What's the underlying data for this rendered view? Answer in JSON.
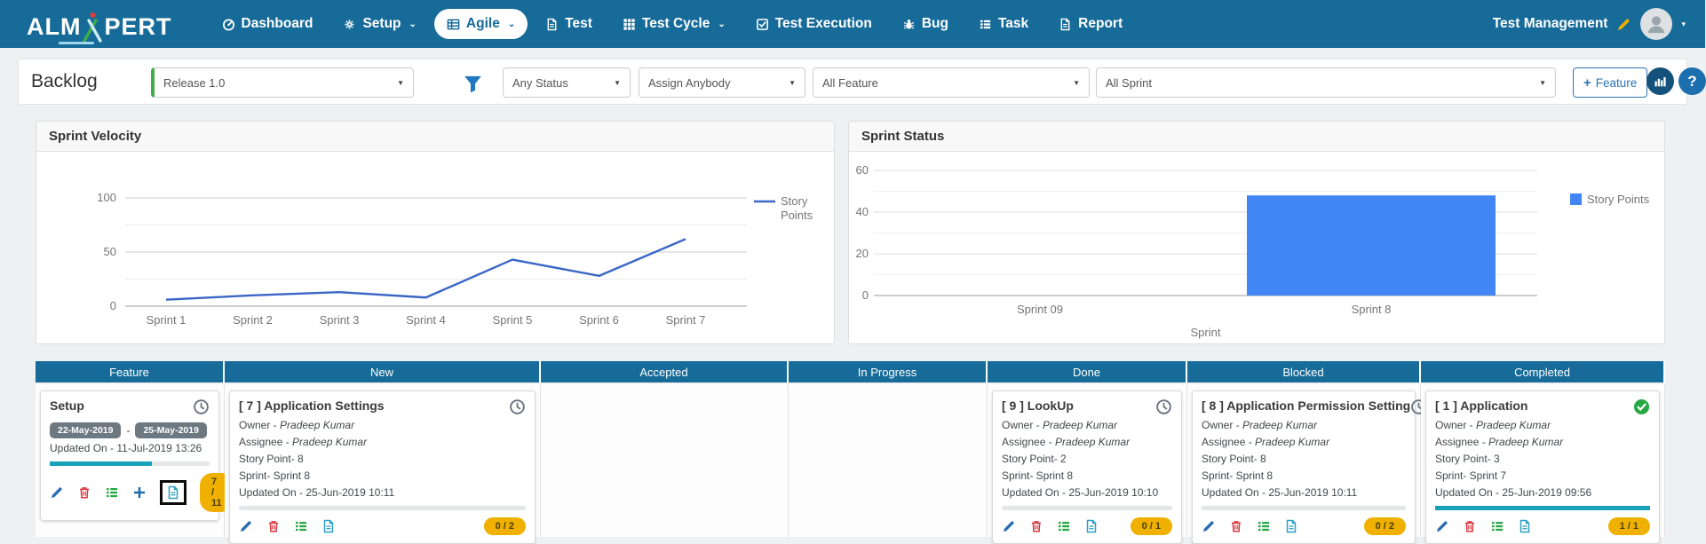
{
  "nav": {
    "brand": {
      "part1": "ALM",
      "x_letter": "X",
      "part2": "PERT"
    },
    "items": [
      {
        "id": "dashboard",
        "label": "Dashboard",
        "icon": "dashboard",
        "caret": false,
        "active": false
      },
      {
        "id": "setup",
        "label": "Setup",
        "icon": "gears",
        "caret": true,
        "active": false
      },
      {
        "id": "agile",
        "label": "Agile",
        "icon": "table",
        "caret": true,
        "active": true
      },
      {
        "id": "test",
        "label": "Test",
        "icon": "file",
        "caret": false,
        "active": false
      },
      {
        "id": "test-cycle",
        "label": "Test Cycle",
        "icon": "grid",
        "caret": true,
        "active": false
      },
      {
        "id": "test-execution",
        "label": "Test Execution",
        "icon": "check-square",
        "caret": false,
        "active": false
      },
      {
        "id": "bug",
        "label": "Bug",
        "icon": "bug",
        "caret": false,
        "active": false
      },
      {
        "id": "task",
        "label": "Task",
        "icon": "tasks",
        "caret": false,
        "active": false
      },
      {
        "id": "report",
        "label": "Report",
        "icon": "file",
        "caret": false,
        "active": false
      }
    ],
    "project_name": "Test Management"
  },
  "toolbar": {
    "page_title": "Backlog",
    "release_filter": "Release 1.0",
    "status_filter": "Any Status",
    "assignee_filter": "Assign Anybody",
    "feature_filter": "All Feature",
    "sprint_filter": "All Sprint",
    "add_feature_plus": "+",
    "add_feature_label": "Feature",
    "help_label": "?"
  },
  "chart_data": [
    {
      "type": "line",
      "title": "Sprint Velocity",
      "categories": [
        "Sprint 1",
        "Sprint 2",
        "Sprint 3",
        "Sprint 4",
        "Sprint 5",
        "Sprint 6",
        "Sprint 7"
      ],
      "series": [
        {
          "name": "Story Points",
          "values": [
            6,
            10,
            13,
            8,
            43,
            28,
            62
          ]
        }
      ],
      "xlabel": "",
      "ylabel": "",
      "yticks": [
        0,
        50,
        100
      ],
      "yticks_minor": [
        25,
        75
      ],
      "ylim": [
        0,
        115
      ],
      "grid": true,
      "legend_position": "right",
      "line_color": "#3a66c6"
    },
    {
      "type": "bar",
      "title": "Sprint Status",
      "categories": [
        "Sprint 09",
        "Sprint 8"
      ],
      "series": [
        {
          "name": "Story Points",
          "values": [
            0,
            48
          ]
        }
      ],
      "xlabel": "Sprint",
      "ylabel": "",
      "yticks": [
        0,
        20,
        40,
        60
      ],
      "yticks_minor": [
        10,
        30,
        50
      ],
      "ylim": [
        0,
        64
      ],
      "grid": true,
      "legend_position": "right",
      "bar_color": "#4285f4"
    }
  ],
  "board": {
    "columns": [
      {
        "label": "Feature",
        "cards": [
          {
            "title": "Setup",
            "corner_icon": "clock",
            "date_badges": {
              "start": "22-May-2019",
              "separator": "-",
              "end": "25-May-2019"
            },
            "lines": [
              {
                "label": "Updated On - 11-Jul-2019 13:26"
              }
            ],
            "progress": 64,
            "actions": [
              "edit",
              "delete",
              "list",
              "add",
              "file-highlight"
            ],
            "badge": "7 / 11"
          }
        ]
      },
      {
        "label": "New",
        "cards": [
          {
            "title": "[ 7 ] Application Settings",
            "corner_icon": "clock",
            "lines": [
              {
                "label": "Owner - ",
                "value": "Pradeep Kumar"
              },
              {
                "label": "Assignee - ",
                "value": "Pradeep Kumar"
              },
              {
                "label": "Story Point- 8"
              },
              {
                "label": "Sprint- Sprint 8"
              },
              {
                "label": "Updated On - 25-Jun-2019 10:11"
              }
            ],
            "progress": 0,
            "actions": [
              "edit",
              "delete",
              "list",
              "file"
            ],
            "badge": "0 / 2"
          }
        ]
      },
      {
        "label": "Accepted",
        "cards": []
      },
      {
        "label": "In Progress",
        "cards": []
      },
      {
        "label": "Done",
        "cards": [
          {
            "title": "[ 9 ] LookUp",
            "corner_icon": "clock",
            "lines": [
              {
                "label": "Owner - ",
                "value": "Pradeep Kumar"
              },
              {
                "label": "Assignee - ",
                "value": "Pradeep Kumar"
              },
              {
                "label": "Story Point- 2"
              },
              {
                "label": "Sprint- Sprint 8"
              },
              {
                "label": "Updated On - 25-Jun-2019 10:10"
              }
            ],
            "progress": 0,
            "actions": [
              "edit",
              "delete",
              "list",
              "file"
            ],
            "badge": "0 / 1"
          }
        ]
      },
      {
        "label": "Blocked",
        "cards": [
          {
            "title": "[ 8 ] Application Permission Setting",
            "corner_icon": "clock",
            "lines": [
              {
                "label": "Owner - ",
                "value": "Pradeep Kumar"
              },
              {
                "label": "Assignee - ",
                "value": "Pradeep Kumar"
              },
              {
                "label": "Story Point- 8"
              },
              {
                "label": "Sprint- Sprint 8"
              },
              {
                "label": "Updated On - 25-Jun-2019 10:11"
              }
            ],
            "progress": 0,
            "actions": [
              "edit",
              "delete",
              "list",
              "file"
            ],
            "badge": "0 / 2"
          }
        ]
      },
      {
        "label": "Completed",
        "cards": [
          {
            "title": "[ 1 ] Application",
            "corner_icon": "check-circle",
            "lines": [
              {
                "label": "Owner - ",
                "value": "Pradeep Kumar"
              },
              {
                "label": "Assignee - ",
                "value": "Pradeep Kumar"
              },
              {
                "label": "Story Point- 3"
              },
              {
                "label": "Sprint- Sprint 7"
              },
              {
                "label": "Updated On - 25-Jun-2019 09:56"
              }
            ],
            "progress": 100,
            "actions": [
              "edit",
              "delete",
              "list",
              "file"
            ],
            "badge": "1 / 1"
          }
        ]
      }
    ]
  },
  "colors": {
    "navbar": "#176b99",
    "accent_blue": "#2e75b6",
    "line_blue": "#3a66c6",
    "bar_blue": "#4285f4",
    "progress_teal": "#17a2b8",
    "badge_yellow": "#efb000",
    "release_accent_green": "#3fae49",
    "danger_red": "#d9363e",
    "success_green": "#28a745"
  }
}
